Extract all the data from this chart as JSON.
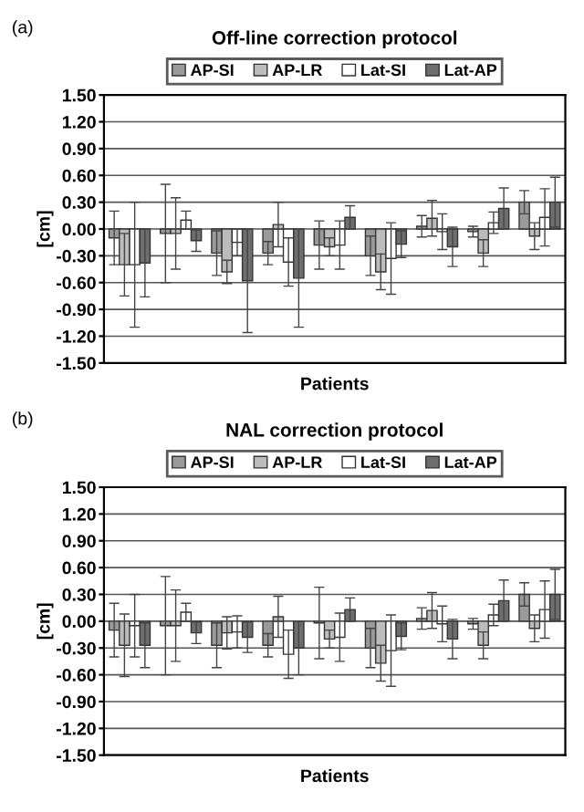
{
  "chart_data": [
    {
      "type": "bar",
      "title": "Off-line correction protocol",
      "xlabel": "Patients",
      "ylabel": "[cm]",
      "annotations": [
        "(a)"
      ],
      "categories": [
        null,
        null,
        null,
        null,
        null,
        null,
        null,
        null,
        null
      ],
      "series": [
        {
          "name": "AP-SI",
          "color": "#9a9a9a",
          "values": [
            -0.1,
            -0.05,
            -0.27,
            -0.27,
            -0.18,
            -0.3,
            0.03,
            -0.03,
            0.3
          ],
          "errors": [
            0.3,
            0.55,
            0.25,
            0.13,
            0.27,
            0.22,
            0.12,
            0.06,
            0.13
          ]
        },
        {
          "name": "AP-LR",
          "color": "#bcbcbc",
          "values": [
            -0.4,
            -0.05,
            -0.48,
            0.05,
            -0.2,
            -0.48,
            0.12,
            -0.27,
            -0.08
          ],
          "errors": [
            0.35,
            0.4,
            0.13,
            0.25,
            0.1,
            0.2,
            0.2,
            0.15,
            0.15
          ]
        },
        {
          "name": "Lat-SI",
          "color": "#ffffff",
          "values": [
            -0.4,
            0.1,
            -0.15,
            -0.37,
            -0.18,
            -0.33,
            -0.03,
            0.07,
            0.13
          ],
          "errors": [
            0.7,
            0.1,
            0.15,
            0.27,
            0.27,
            0.4,
            0.2,
            0.12,
            0.32
          ]
        },
        {
          "name": "Lat-AP",
          "color": "#6e6e6e",
          "values": [
            -0.38,
            -0.13,
            -0.58,
            -0.55,
            0.13,
            -0.17,
            -0.2,
            0.23,
            0.3
          ],
          "errors": [
            0.38,
            0.12,
            0.58,
            0.55,
            0.13,
            0.15,
            0.22,
            0.23,
            0.28
          ]
        }
      ],
      "ylim": [
        -1.5,
        1.5
      ],
      "yticks": [
        {
          "value": -1.5,
          "label": "-1.50"
        },
        {
          "value": -1.2,
          "label": "-1.20"
        },
        {
          "value": -0.9,
          "label": "-0.90"
        },
        {
          "value": -0.6,
          "label": "-0.60"
        },
        {
          "value": -0.3,
          "label": "-0.30"
        },
        {
          "value": 0,
          "label": "0.00"
        },
        {
          "value": 0.3,
          "label": "0.30"
        },
        {
          "value": 0.6,
          "label": "0.60"
        },
        {
          "value": 0.9,
          "label": "0.90"
        },
        {
          "value": 1.2,
          "label": "1.20"
        },
        {
          "value": 1.5,
          "label": "1.50"
        }
      ],
      "grid": "y",
      "legend": "top"
    },
    {
      "type": "bar",
      "title": "NAL correction protocol",
      "xlabel": "Patients",
      "ylabel": "[cm]",
      "annotations": [
        "(b)"
      ],
      "categories": [
        null,
        null,
        null,
        null,
        null,
        null,
        null,
        null,
        null
      ],
      "series": [
        {
          "name": "AP-SI",
          "color": "#9a9a9a",
          "values": [
            -0.1,
            -0.05,
            -0.27,
            -0.27,
            -0.02,
            -0.3,
            0.03,
            -0.03,
            0.3
          ],
          "errors": [
            0.3,
            0.55,
            0.25,
            0.13,
            0.4,
            0.22,
            0.12,
            0.06,
            0.13
          ]
        },
        {
          "name": "AP-LR",
          "color": "#bcbcbc",
          "values": [
            -0.27,
            -0.05,
            -0.13,
            0.05,
            -0.2,
            -0.47,
            0.12,
            -0.27,
            -0.08
          ],
          "errors": [
            0.35,
            0.4,
            0.18,
            0.23,
            0.1,
            0.2,
            0.2,
            0.15,
            0.15
          ]
        },
        {
          "name": "Lat-SI",
          "color": "#ffffff",
          "values": [
            -0.05,
            0.1,
            -0.12,
            -0.37,
            -0.18,
            -0.33,
            -0.03,
            0.07,
            0.13
          ],
          "errors": [
            0.35,
            0.1,
            0.18,
            0.27,
            0.27,
            0.4,
            0.2,
            0.12,
            0.32
          ]
        },
        {
          "name": "Lat-AP",
          "color": "#6e6e6e",
          "values": [
            -0.27,
            -0.13,
            -0.18,
            -0.3,
            0.13,
            -0.17,
            -0.2,
            0.23,
            0.3
          ],
          "errors": [
            0.25,
            0.12,
            0.17,
            0.3,
            0.13,
            0.15,
            0.22,
            0.23,
            0.28
          ]
        }
      ],
      "ylim": [
        -1.5,
        1.5
      ],
      "yticks": [
        {
          "value": -1.5,
          "label": "-1.50"
        },
        {
          "value": -1.2,
          "label": "-1.20"
        },
        {
          "value": -0.9,
          "label": "-0.90"
        },
        {
          "value": -0.6,
          "label": "-0.60"
        },
        {
          "value": -0.3,
          "label": "-0.30"
        },
        {
          "value": 0,
          "label": "0.00"
        },
        {
          "value": 0.3,
          "label": "0.30"
        },
        {
          "value": 0.6,
          "label": "0.60"
        },
        {
          "value": 0.9,
          "label": "0.90"
        },
        {
          "value": 1.2,
          "label": "1.20"
        },
        {
          "value": 1.5,
          "label": "1.50"
        }
      ],
      "grid": "y",
      "legend": "top"
    }
  ]
}
